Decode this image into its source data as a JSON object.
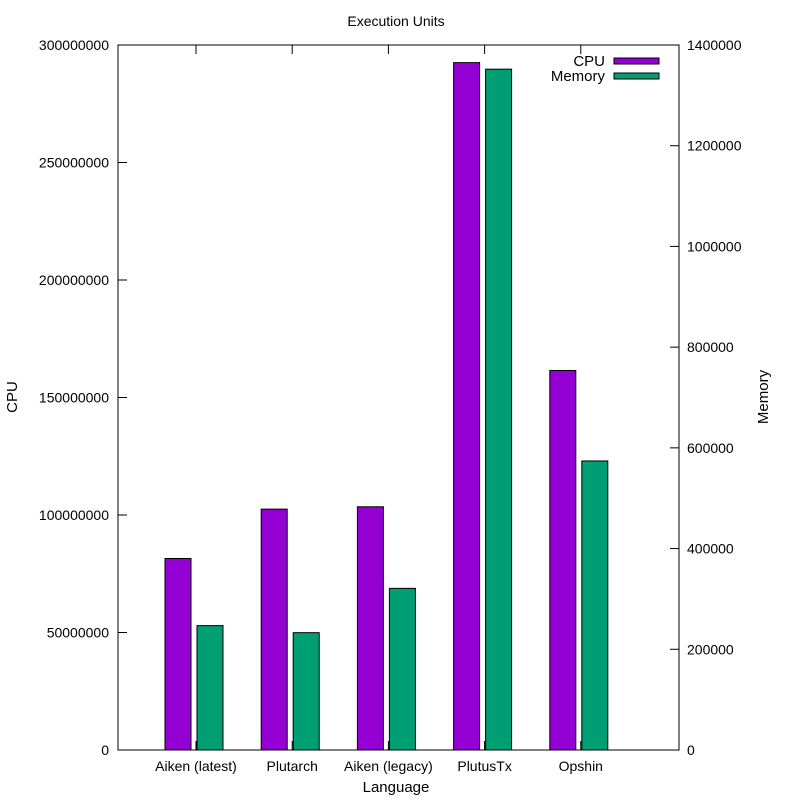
{
  "chart_data": {
    "type": "bar",
    "title": "Execution Units",
    "xlabel": "Language",
    "ylabel": "CPU",
    "y2label": "Memory",
    "categories": [
      "Aiken (latest)",
      "Plutarch",
      "Aiken (legacy)",
      "PlutusTx",
      "Opshin"
    ],
    "series": [
      {
        "name": "CPU",
        "axis": "left",
        "color": "#9400d3",
        "values": [
          81500000,
          102500000,
          103500000,
          292500000,
          161500000
        ]
      },
      {
        "name": "Memory",
        "axis": "right",
        "color": "#009e73",
        "values": [
          247000,
          233000,
          321000,
          1352000,
          574000
        ]
      }
    ],
    "ylim": [
      0,
      300000000
    ],
    "y2lim": [
      0,
      1400000
    ],
    "yticks": [
      "0",
      "50000000",
      "100000000",
      "150000000",
      "200000000",
      "250000000",
      "300000000"
    ],
    "y2ticks": [
      "0",
      "200000",
      "400000",
      "600000",
      "800000",
      "1000000",
      "1200000",
      "1400000"
    ],
    "legend_position": "top-right",
    "grid": false
  }
}
